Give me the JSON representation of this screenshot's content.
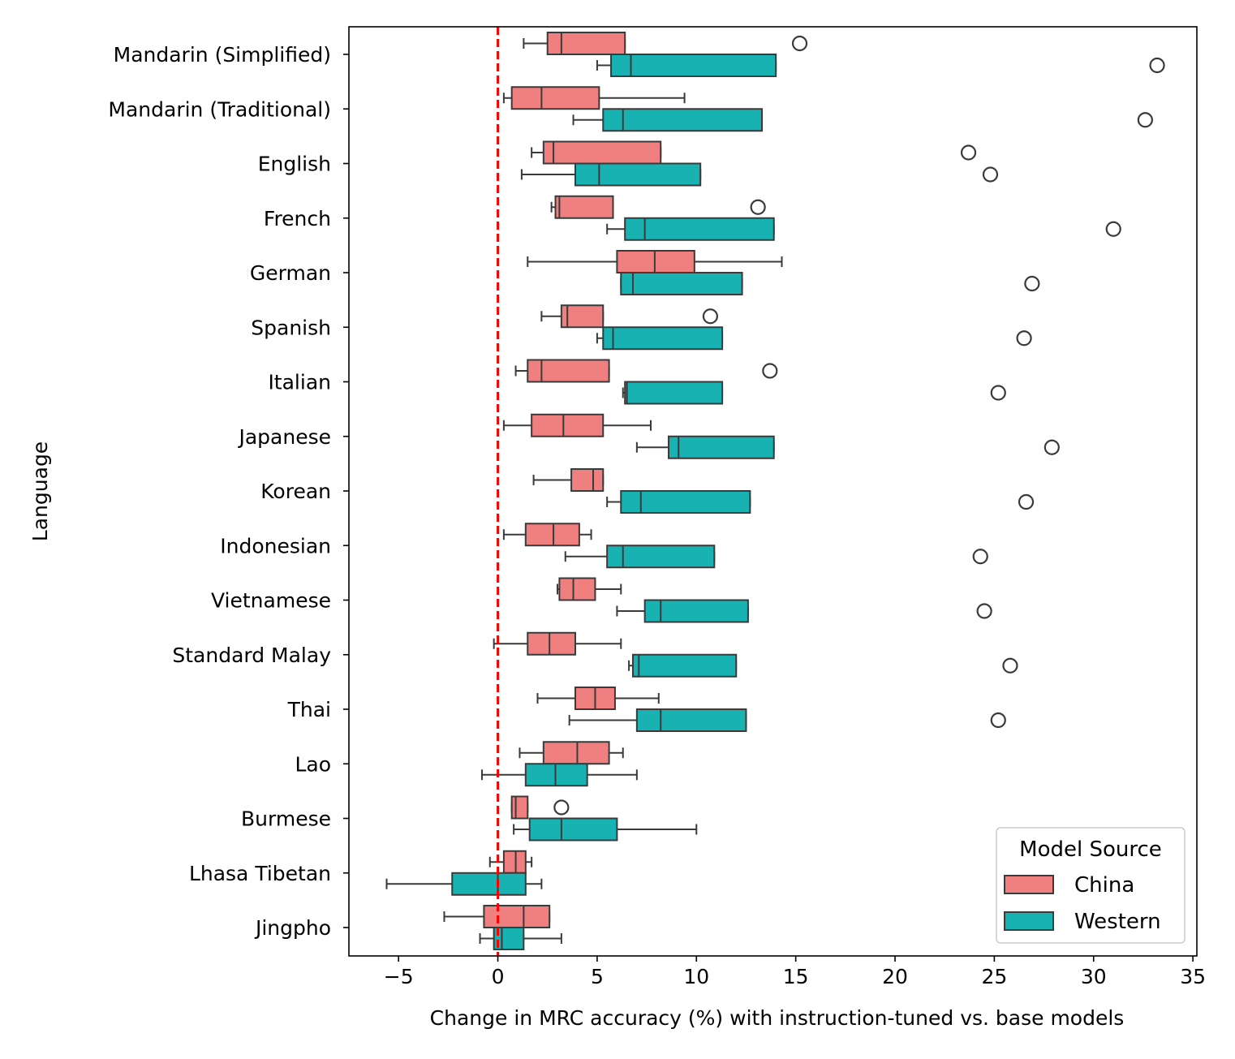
{
  "chart_data": {
    "type": "boxplot",
    "title": "",
    "xlabel": "Change in MRC accuracy (%) with instruction-tuned vs. base models",
    "ylabel": "Language",
    "xlim": [
      -7.5,
      35.2
    ],
    "xticks": [
      -5,
      0,
      5,
      10,
      15,
      20,
      25,
      30,
      35
    ],
    "xtick_labels": [
      "−5",
      "0",
      "5",
      "10",
      "15",
      "20",
      "25",
      "30",
      "35"
    ],
    "reference_line": {
      "x": 0,
      "color": "#ff0000",
      "style": "dashed"
    },
    "legend": {
      "title": "Model Source",
      "position": "lower-right",
      "entries": [
        {
          "name": "China",
          "color": "#f08080"
        },
        {
          "name": "Western",
          "color": "#18b2b2"
        }
      ]
    },
    "series_colors": {
      "China": "#f08080",
      "Western": "#18b2b2"
    },
    "languages": [
      {
        "name": "Mandarin (Simplified)",
        "China": {
          "whisker_low": 1.3,
          "q1": 2.5,
          "median": 3.2,
          "q3": 6.4,
          "whisker_high": 6.4,
          "outliers": [
            15.2
          ]
        },
        "Western": {
          "whisker_low": 5.0,
          "q1": 5.7,
          "median": 6.7,
          "q3": 14.0,
          "whisker_high": 14.0,
          "outliers": [
            33.2
          ]
        }
      },
      {
        "name": "Mandarin (Traditional)",
        "China": {
          "whisker_low": 0.3,
          "q1": 0.7,
          "median": 2.2,
          "q3": 5.1,
          "whisker_high": 9.4,
          "outliers": []
        },
        "Western": {
          "whisker_low": 3.8,
          "q1": 5.3,
          "median": 6.3,
          "q3": 13.3,
          "whisker_high": 13.3,
          "outliers": [
            32.6
          ]
        }
      },
      {
        "name": "English",
        "China": {
          "whisker_low": 1.7,
          "q1": 2.3,
          "median": 2.8,
          "q3": 8.2,
          "whisker_high": 8.2,
          "outliers": [
            23.7
          ]
        },
        "Western": {
          "whisker_low": 1.2,
          "q1": 3.9,
          "median": 5.1,
          "q3": 10.2,
          "whisker_high": 10.2,
          "outliers": [
            24.8
          ]
        }
      },
      {
        "name": "French",
        "China": {
          "whisker_low": 2.7,
          "q1": 2.9,
          "median": 3.1,
          "q3": 5.8,
          "whisker_high": 5.8,
          "outliers": [
            13.1
          ]
        },
        "Western": {
          "whisker_low": 5.5,
          "q1": 6.4,
          "median": 7.4,
          "q3": 13.9,
          "whisker_high": 13.9,
          "outliers": [
            31.0
          ]
        }
      },
      {
        "name": "German",
        "China": {
          "whisker_low": 1.5,
          "q1": 6.0,
          "median": 7.9,
          "q3": 9.9,
          "whisker_high": 14.3,
          "outliers": []
        },
        "Western": {
          "whisker_low": 6.2,
          "q1": 6.2,
          "median": 6.8,
          "q3": 12.3,
          "whisker_high": 12.3,
          "outliers": [
            26.9
          ]
        }
      },
      {
        "name": "Spanish",
        "China": {
          "whisker_low": 2.2,
          "q1": 3.2,
          "median": 3.5,
          "q3": 5.3,
          "whisker_high": 5.3,
          "outliers": [
            10.7
          ]
        },
        "Western": {
          "whisker_low": 5.0,
          "q1": 5.3,
          "median": 5.8,
          "q3": 11.3,
          "whisker_high": 11.3,
          "outliers": [
            26.5
          ]
        }
      },
      {
        "name": "Italian",
        "China": {
          "whisker_low": 0.9,
          "q1": 1.5,
          "median": 2.2,
          "q3": 5.6,
          "whisker_high": 5.6,
          "outliers": [
            13.7
          ]
        },
        "Western": {
          "whisker_low": 6.3,
          "q1": 6.4,
          "median": 6.5,
          "q3": 11.3,
          "whisker_high": 11.3,
          "outliers": [
            25.2
          ]
        }
      },
      {
        "name": "Japanese",
        "China": {
          "whisker_low": 0.3,
          "q1": 1.7,
          "median": 3.3,
          "q3": 5.3,
          "whisker_high": 7.7,
          "outliers": []
        },
        "Western": {
          "whisker_low": 7.0,
          "q1": 8.6,
          "median": 9.1,
          "q3": 13.9,
          "whisker_high": 13.9,
          "outliers": [
            27.9
          ]
        }
      },
      {
        "name": "Korean",
        "China": {
          "whisker_low": 1.8,
          "q1": 3.7,
          "median": 4.8,
          "q3": 5.3,
          "whisker_high": 5.3,
          "outliers": []
        },
        "Western": {
          "whisker_low": 5.5,
          "q1": 6.2,
          "median": 7.2,
          "q3": 12.7,
          "whisker_high": 12.7,
          "outliers": [
            26.6
          ]
        }
      },
      {
        "name": "Indonesian",
        "China": {
          "whisker_low": 0.3,
          "q1": 1.4,
          "median": 2.8,
          "q3": 4.1,
          "whisker_high": 4.7,
          "outliers": []
        },
        "Western": {
          "whisker_low": 3.4,
          "q1": 5.5,
          "median": 6.3,
          "q3": 10.9,
          "whisker_high": 10.9,
          "outliers": [
            24.3
          ]
        }
      },
      {
        "name": "Vietnamese",
        "China": {
          "whisker_low": 3.0,
          "q1": 3.1,
          "median": 3.8,
          "q3": 4.9,
          "whisker_high": 6.2,
          "outliers": []
        },
        "Western": {
          "whisker_low": 6.0,
          "q1": 7.4,
          "median": 8.2,
          "q3": 12.6,
          "whisker_high": 12.6,
          "outliers": [
            24.5
          ]
        }
      },
      {
        "name": "Standard Malay",
        "China": {
          "whisker_low": -0.2,
          "q1": 1.5,
          "median": 2.6,
          "q3": 3.9,
          "whisker_high": 6.2,
          "outliers": []
        },
        "Western": {
          "whisker_low": 6.6,
          "q1": 6.8,
          "median": 7.1,
          "q3": 12.0,
          "whisker_high": 12.0,
          "outliers": [
            25.8
          ]
        }
      },
      {
        "name": "Thai",
        "China": {
          "whisker_low": 2.0,
          "q1": 3.9,
          "median": 4.9,
          "q3": 5.9,
          "whisker_high": 8.1,
          "outliers": []
        },
        "Western": {
          "whisker_low": 3.6,
          "q1": 7.0,
          "median": 8.2,
          "q3": 12.5,
          "whisker_high": 12.5,
          "outliers": [
            25.2
          ]
        }
      },
      {
        "name": "Lao",
        "China": {
          "whisker_low": 1.1,
          "q1": 2.3,
          "median": 4.0,
          "q3": 5.6,
          "whisker_high": 6.3,
          "outliers": []
        },
        "Western": {
          "whisker_low": -0.8,
          "q1": 1.4,
          "median": 2.9,
          "q3": 4.5,
          "whisker_high": 7.0,
          "outliers": []
        }
      },
      {
        "name": "Burmese",
        "China": {
          "whisker_low": 0.7,
          "q1": 0.7,
          "median": 0.9,
          "q3": 1.5,
          "whisker_high": 1.5,
          "outliers": [
            3.2
          ]
        },
        "Western": {
          "whisker_low": 0.8,
          "q1": 1.6,
          "median": 3.2,
          "q3": 6.0,
          "whisker_high": 10.0,
          "outliers": []
        }
      },
      {
        "name": "Lhasa Tibetan",
        "China": {
          "whisker_low": -0.4,
          "q1": 0.3,
          "median": 0.9,
          "q3": 1.4,
          "whisker_high": 1.7,
          "outliers": []
        },
        "Western": {
          "whisker_low": -5.6,
          "q1": -2.3,
          "median": 0.0,
          "q3": 1.4,
          "whisker_high": 2.2,
          "outliers": []
        }
      },
      {
        "name": "Jingpho",
        "China": {
          "whisker_low": -2.7,
          "q1": -0.7,
          "median": 1.3,
          "q3": 2.6,
          "whisker_high": 2.6,
          "outliers": []
        },
        "Western": {
          "whisker_low": -0.9,
          "q1": -0.2,
          "median": 0.2,
          "q3": 1.3,
          "whisker_high": 3.2,
          "outliers": []
        }
      }
    ]
  }
}
